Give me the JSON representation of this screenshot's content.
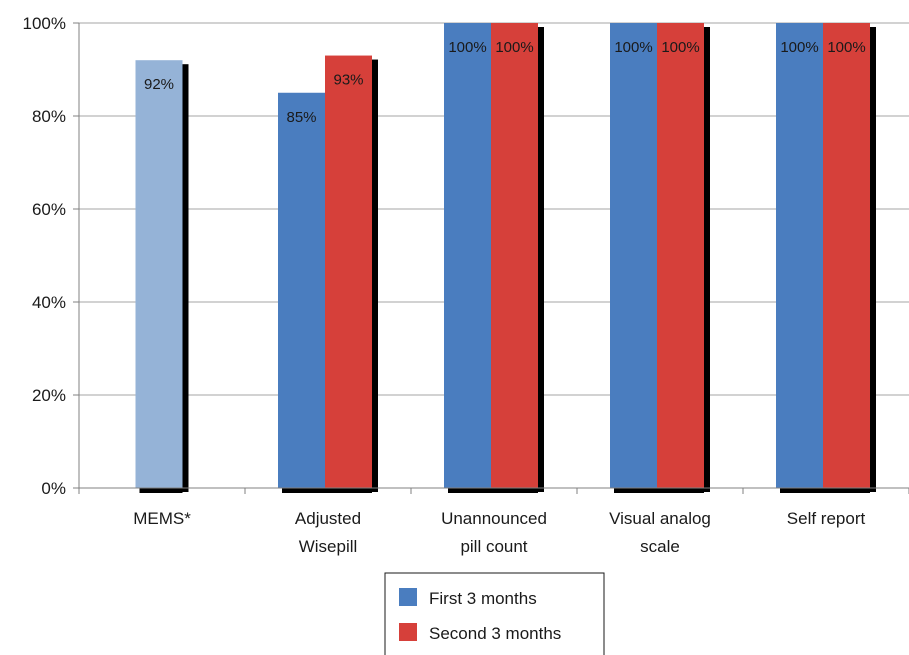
{
  "chart_data": {
    "type": "bar",
    "title": "",
    "xlabel": "",
    "ylabel": "",
    "ylim": [
      0,
      100
    ],
    "y_ticks": [
      "0%",
      "20%",
      "40%",
      "60%",
      "80%",
      "100%"
    ],
    "y_tick_values": [
      0,
      20,
      40,
      60,
      80,
      100
    ],
    "grid": true,
    "legend_position": "bottom",
    "categories": [
      [
        "MEMS*"
      ],
      [
        "Adjusted",
        "Wisepill"
      ],
      [
        "Unannounced",
        "pill count"
      ],
      [
        "Visual analog",
        "scale"
      ],
      [
        "Self report"
      ]
    ],
    "single_bar": {
      "category_index": 0,
      "value": 92,
      "label": "92%",
      "color": "#95b3d7"
    },
    "series": [
      {
        "name": "First 3 months",
        "color": "#4a7dbf",
        "values": [
          null,
          85,
          100,
          100,
          100
        ],
        "labels": [
          "",
          "85%",
          "100%",
          "100%",
          "100%"
        ]
      },
      {
        "name": "Second 3 months",
        "color": "#d6403a",
        "values": [
          null,
          93,
          100,
          100,
          100
        ],
        "labels": [
          "",
          "93%",
          "100%",
          "100%",
          "100%"
        ]
      }
    ],
    "shadow_color": "#000000",
    "grid_color": "#a6a6a6"
  }
}
